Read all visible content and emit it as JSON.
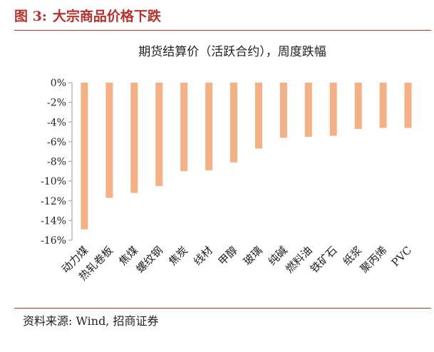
{
  "figure": {
    "label": "图 3:",
    "title": "大宗商品价格下跌",
    "source": "资料来源: Wind, 招商证券"
  },
  "colors": {
    "bar": "#f5b183",
    "title": "#b7322c",
    "axis": "#999999"
  },
  "chart_data": {
    "type": "bar",
    "title": "期货结算价（活跃合约），周度跌幅",
    "xlabel": "",
    "ylabel": "",
    "categories": [
      "动力煤",
      "热轧卷板",
      "焦煤",
      "螺纹钢",
      "焦炭",
      "线材",
      "甲醇",
      "玻璃",
      "纯碱",
      "燃料油",
      "铁矿石",
      "纸浆",
      "聚丙烯",
      "PVC"
    ],
    "values": [
      -14.9,
      -11.7,
      -11.2,
      -10.5,
      -9.0,
      -8.9,
      -8.1,
      -6.7,
      -5.6,
      -5.5,
      -5.4,
      -4.7,
      -4.6,
      -4.6
    ],
    "ylim": [
      -16,
      0
    ],
    "yticks": [
      0,
      -2,
      -4,
      -6,
      -8,
      -10,
      -12,
      -14,
      -16
    ],
    "ytick_labels": [
      "0%",
      "-2%",
      "-4%",
      "-6%",
      "-8%",
      "-10%",
      "-12%",
      "-14%",
      "-16%"
    ],
    "grid": false,
    "legend": "none"
  }
}
